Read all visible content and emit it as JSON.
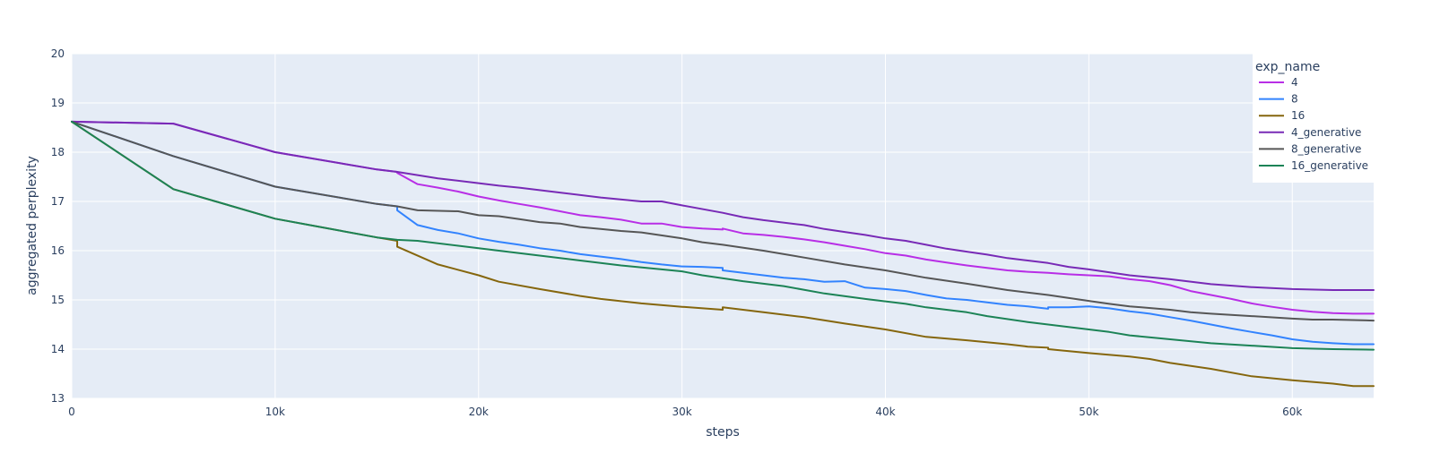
{
  "chart_data": {
    "type": "line",
    "xlabel": "steps",
    "ylabel": "aggregated perplexity",
    "xlim": [
      0,
      64000
    ],
    "ylim": [
      13,
      20
    ],
    "x_ticks": [
      0,
      10000,
      20000,
      30000,
      40000,
      50000,
      60000
    ],
    "x_tick_labels": [
      "0",
      "10k",
      "20k",
      "30k",
      "40k",
      "50k",
      "60k"
    ],
    "y_ticks": [
      13,
      14,
      15,
      16,
      17,
      18,
      19,
      20
    ],
    "y_tick_labels": [
      "13",
      "14",
      "15",
      "16",
      "17",
      "18",
      "19",
      "20"
    ],
    "grid": true,
    "legend": {
      "title": "exp_name",
      "position": "top-right"
    },
    "plot_bgcolor": "#e5ecf6",
    "series": [
      {
        "name": "4",
        "color": "#b82ee6",
        "x": [
          0,
          5000,
          10000,
          15000,
          16000,
          16000,
          17000,
          18000,
          19000,
          20000,
          21000,
          22000,
          23000,
          24000,
          25000,
          26000,
          27000,
          28000,
          29000,
          30000,
          31000,
          32000,
          32000,
          33000,
          34000,
          35000,
          36000,
          37000,
          38000,
          39000,
          40000,
          41000,
          42000,
          43000,
          44000,
          45000,
          46000,
          47000,
          48000,
          49000,
          50000,
          51000,
          52000,
          53000,
          54000,
          55000,
          56000,
          57000,
          58000,
          59000,
          60000,
          61000,
          62000,
          63000,
          64000
        ],
        "y": [
          18.62,
          18.58,
          18.0,
          17.65,
          17.6,
          17.58,
          17.35,
          17.28,
          17.2,
          17.1,
          17.02,
          16.95,
          16.88,
          16.8,
          16.72,
          16.68,
          16.63,
          16.55,
          16.55,
          16.48,
          16.45,
          16.43,
          16.45,
          16.35,
          16.32,
          16.28,
          16.23,
          16.17,
          16.1,
          16.03,
          15.95,
          15.9,
          15.82,
          15.76,
          15.7,
          15.65,
          15.6,
          15.57,
          15.55,
          15.52,
          15.5,
          15.48,
          15.42,
          15.38,
          15.3,
          15.18,
          15.1,
          15.02,
          14.93,
          14.86,
          14.8,
          14.76,
          14.73,
          14.72,
          14.72
        ]
      },
      {
        "name": "8",
        "color": "#3283fe",
        "x": [
          0,
          5000,
          10000,
          15000,
          16000,
          16000,
          17000,
          18000,
          19000,
          20000,
          21000,
          22000,
          23000,
          24000,
          25000,
          26000,
          27000,
          28000,
          29000,
          30000,
          31000,
          32000,
          32000,
          33000,
          34000,
          35000,
          36000,
          37000,
          38000,
          39000,
          40000,
          41000,
          42000,
          43000,
          44000,
          45000,
          46000,
          47000,
          48000,
          48000,
          49000,
          50000,
          51000,
          52000,
          53000,
          54000,
          55000,
          56000,
          57000,
          58000,
          59000,
          60000,
          61000,
          62000,
          63000,
          64000
        ],
        "y": [
          18.62,
          17.92,
          17.3,
          16.95,
          16.9,
          16.82,
          16.52,
          16.42,
          16.35,
          16.25,
          16.18,
          16.12,
          16.05,
          16.0,
          15.93,
          15.88,
          15.83,
          15.77,
          15.72,
          15.68,
          15.67,
          15.65,
          15.6,
          15.55,
          15.5,
          15.45,
          15.42,
          15.37,
          15.38,
          15.25,
          15.22,
          15.18,
          15.1,
          15.03,
          15.0,
          14.95,
          14.9,
          14.87,
          14.82,
          14.85,
          14.85,
          14.87,
          14.83,
          14.77,
          14.72,
          14.65,
          14.58,
          14.5,
          14.42,
          14.35,
          14.28,
          14.2,
          14.15,
          14.12,
          14.1,
          14.1
        ]
      },
      {
        "name": "16",
        "color": "#85660d",
        "x": [
          0,
          5000,
          10000,
          15000,
          16000,
          16000,
          18000,
          20000,
          21000,
          23000,
          25000,
          26000,
          28000,
          30000,
          32000,
          32000,
          34000,
          36000,
          38000,
          40000,
          42000,
          44000,
          46000,
          47000,
          48000,
          48000,
          50000,
          52000,
          53000,
          54000,
          56000,
          58000,
          60000,
          62000,
          63000,
          64000
        ],
        "y": [
          18.62,
          17.25,
          16.65,
          16.27,
          16.2,
          16.08,
          15.72,
          15.5,
          15.37,
          15.22,
          15.08,
          15.02,
          14.93,
          14.86,
          14.8,
          14.85,
          14.75,
          14.65,
          14.52,
          14.4,
          14.25,
          14.18,
          14.1,
          14.05,
          14.03,
          14.0,
          13.92,
          13.85,
          13.8,
          13.72,
          13.6,
          13.45,
          13.37,
          13.3,
          13.25,
          13.25
        ]
      },
      {
        "name": "4_generative",
        "color": "#782ab6",
        "x": [
          0,
          5000,
          10000,
          15000,
          16000,
          18000,
          20000,
          21000,
          22000,
          24000,
          26000,
          28000,
          29000,
          30000,
          32000,
          33000,
          34000,
          36000,
          37000,
          38000,
          39000,
          40000,
          41000,
          42000,
          43000,
          44000,
          45000,
          46000,
          47000,
          48000,
          49000,
          50000,
          52000,
          54000,
          56000,
          58000,
          60000,
          62000,
          64000
        ],
        "y": [
          18.62,
          18.58,
          18.0,
          17.65,
          17.6,
          17.47,
          17.37,
          17.32,
          17.28,
          17.18,
          17.08,
          17.0,
          17.0,
          16.92,
          16.77,
          16.68,
          16.62,
          16.52,
          16.44,
          16.38,
          16.32,
          16.25,
          16.2,
          16.12,
          16.04,
          15.98,
          15.92,
          15.85,
          15.8,
          15.75,
          15.67,
          15.62,
          15.5,
          15.42,
          15.32,
          15.26,
          15.22,
          15.2,
          15.2
        ]
      },
      {
        "name": "8_generative",
        "color": "#565656",
        "x": [
          0,
          5000,
          10000,
          15000,
          16000,
          17000,
          19000,
          20000,
          21000,
          22000,
          23000,
          24000,
          25000,
          26000,
          27000,
          28000,
          30000,
          31000,
          32000,
          34000,
          36000,
          38000,
          40000,
          42000,
          44000,
          46000,
          48000,
          50000,
          51000,
          52000,
          54000,
          55000,
          56000,
          58000,
          60000,
          61000,
          62000,
          64000
        ],
        "y": [
          18.62,
          17.92,
          17.3,
          16.95,
          16.9,
          16.82,
          16.8,
          16.72,
          16.7,
          16.64,
          16.58,
          16.55,
          16.48,
          16.44,
          16.4,
          16.37,
          16.25,
          16.17,
          16.12,
          16.0,
          15.86,
          15.72,
          15.6,
          15.45,
          15.33,
          15.2,
          15.1,
          14.98,
          14.92,
          14.87,
          14.8,
          14.75,
          14.72,
          14.67,
          14.62,
          14.6,
          14.6,
          14.58
        ]
      },
      {
        "name": "16_generative",
        "color": "#1c8356",
        "x": [
          0,
          5000,
          10000,
          15000,
          16000,
          17000,
          19000,
          21000,
          23000,
          25000,
          27000,
          29000,
          30000,
          31000,
          33000,
          35000,
          37000,
          39000,
          41000,
          42000,
          44000,
          45000,
          47000,
          49000,
          51000,
          52000,
          54000,
          56000,
          58000,
          60000,
          62000,
          64000
        ],
        "y": [
          18.62,
          17.25,
          16.65,
          16.27,
          16.22,
          16.2,
          16.1,
          16.0,
          15.9,
          15.8,
          15.7,
          15.62,
          15.58,
          15.5,
          15.38,
          15.28,
          15.13,
          15.02,
          14.92,
          14.85,
          14.75,
          14.67,
          14.55,
          14.45,
          14.35,
          14.28,
          14.2,
          14.12,
          14.07,
          14.02,
          14.0,
          13.99
        ]
      }
    ]
  }
}
